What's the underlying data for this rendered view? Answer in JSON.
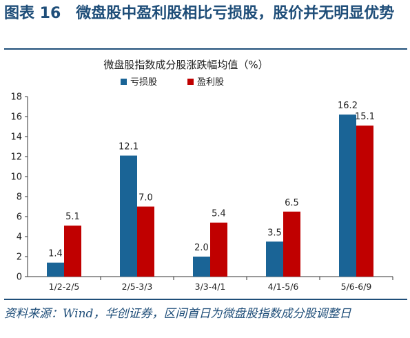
{
  "header": {
    "figure_title": "图表 16　微盘股中盈利股相比亏损股，股价并无明显优势"
  },
  "chart_data": {
    "type": "bar",
    "title": "微盘股指数成分股涨跌幅均值（%）",
    "categories": [
      "1/2-2/5",
      "2/5-3/3",
      "3/3-4/1",
      "4/1-5/6",
      "5/6-6/9"
    ],
    "series": [
      {
        "name": "亏损股",
        "color": "#1a6496",
        "values": [
          1.4,
          12.1,
          2.0,
          3.5,
          16.2
        ]
      },
      {
        "name": "盈利股",
        "color": "#c00000",
        "values": [
          5.1,
          7.0,
          5.4,
          6.5,
          15.1
        ]
      }
    ],
    "ylim": [
      0,
      18
    ],
    "yticks": [
      0,
      2,
      4,
      6,
      8,
      10,
      12,
      14,
      16,
      18
    ],
    "xlabel": "",
    "ylabel": "",
    "grid": false,
    "legend": "top"
  },
  "footer": {
    "source": "资料来源：Wind，华创证券，区间首日为微盘股指数成分股调整日"
  }
}
